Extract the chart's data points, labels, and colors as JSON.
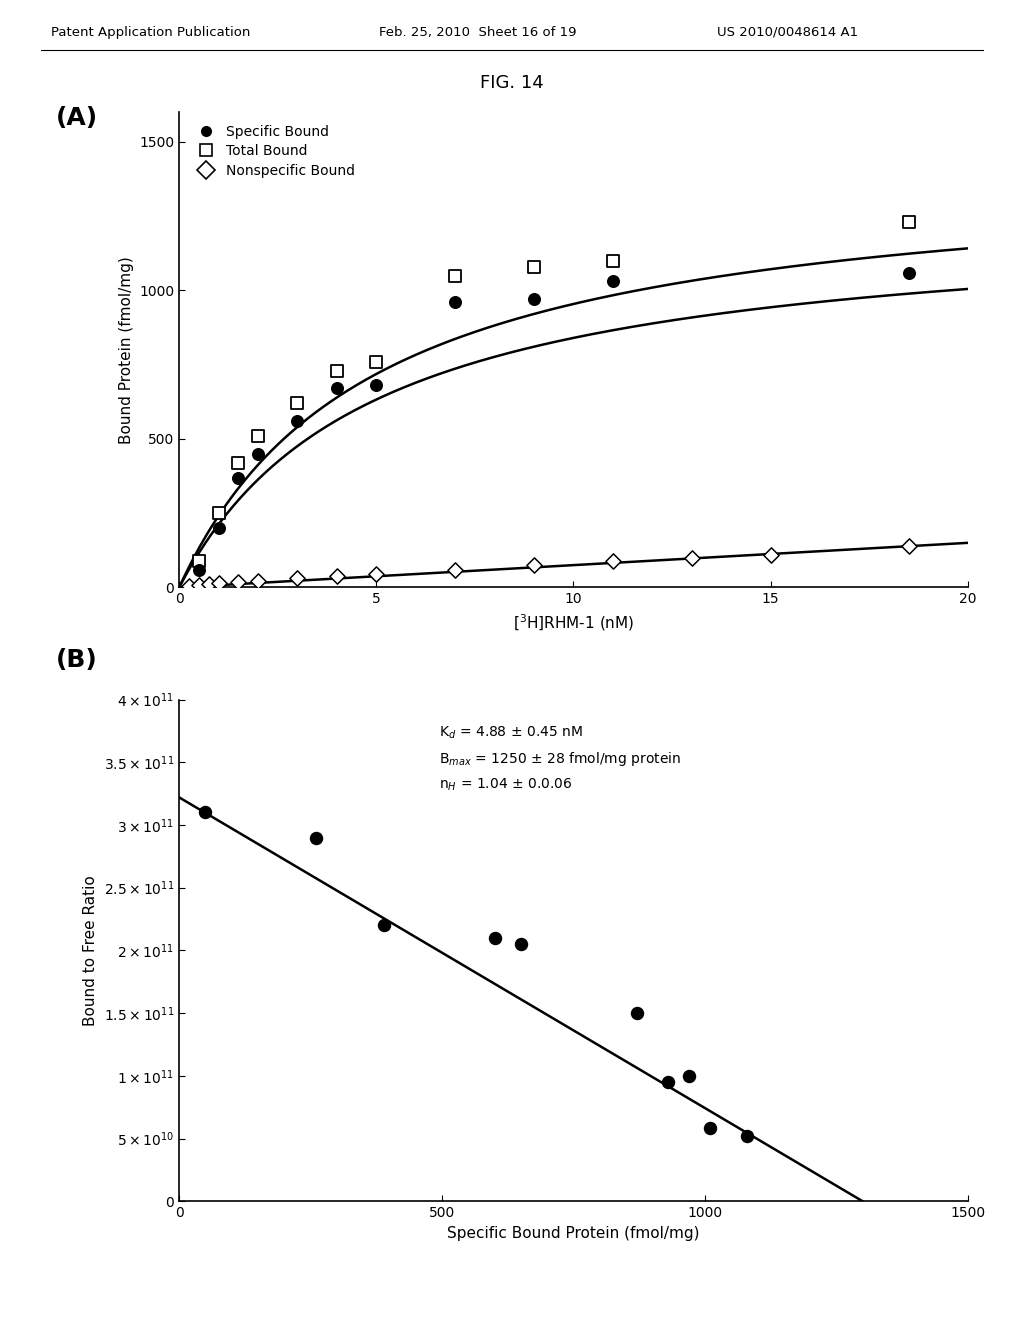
{
  "header_left": "Patent Application Publication",
  "header_mid": "Feb. 25, 2010  Sheet 16 of 19",
  "header_right": "US 2010/0048614 A1",
  "fig_title": "FIG. 14",
  "panel_A_label": "(A)",
  "panel_B_label": "(B)",
  "panel_A": {
    "xlabel": "[3H]RHM-1 (nM)",
    "ylabel": "Bound Protein (fmol/mg)",
    "xlim": [
      0,
      20
    ],
    "ylim": [
      0,
      1600
    ],
    "xticks": [
      0,
      5,
      10,
      15,
      20
    ],
    "yticks": [
      0,
      500,
      1000,
      1500
    ],
    "Bmax_specific": 1250,
    "Kd_specific": 4.88,
    "Bmax_total": 1420,
    "Kd_total": 4.88,
    "nonspecific_slope": 7.5,
    "specific_x": [
      0.5,
      1.0,
      1.5,
      2.0,
      3.0,
      4.0,
      5.0,
      7.0,
      9.0,
      11.0,
      18.5
    ],
    "specific_y": [
      60,
      200,
      370,
      450,
      560,
      670,
      680,
      960,
      970,
      1030,
      1060
    ],
    "total_x": [
      0.5,
      1.0,
      1.5,
      2.0,
      3.0,
      4.0,
      5.0,
      7.0,
      9.0,
      11.0,
      18.5
    ],
    "total_y": [
      90,
      250,
      420,
      510,
      620,
      730,
      760,
      1050,
      1080,
      1100,
      1230
    ],
    "nonspecific_x": [
      0.25,
      0.5,
      0.75,
      1.0,
      1.5,
      2.0,
      3.0,
      4.0,
      5.0,
      7.0,
      9.0,
      11.0,
      13.0,
      15.0,
      18.5
    ],
    "nonspecific_y": [
      5,
      8,
      10,
      15,
      18,
      22,
      30,
      40,
      45,
      60,
      75,
      90,
      100,
      110,
      140
    ]
  },
  "panel_B": {
    "xlabel": "Specific Bound Protein (fmol/mg)",
    "ylabel": "Bound to Free Ratio",
    "xlim": [
      0,
      1500
    ],
    "ylim": [
      0,
      400000000000.0
    ],
    "xticks": [
      0,
      500,
      1000,
      1500
    ],
    "scatter_x": [
      50,
      260,
      390,
      600,
      650,
      870,
      930,
      970,
      1010,
      1080
    ],
    "scatter_y": [
      310000000000.0,
      290000000000.0,
      220000000000.0,
      210000000000.0,
      205000000000.0,
      150000000000.0,
      95000000000.0,
      100000000000.0,
      58000000000.0,
      52000000000.0
    ],
    "line_x1": 0,
    "line_y1": 322000000000.0,
    "line_x2": 1300,
    "line_y2": 0
  },
  "bg_color": "#ffffff",
  "text_color": "#000000"
}
